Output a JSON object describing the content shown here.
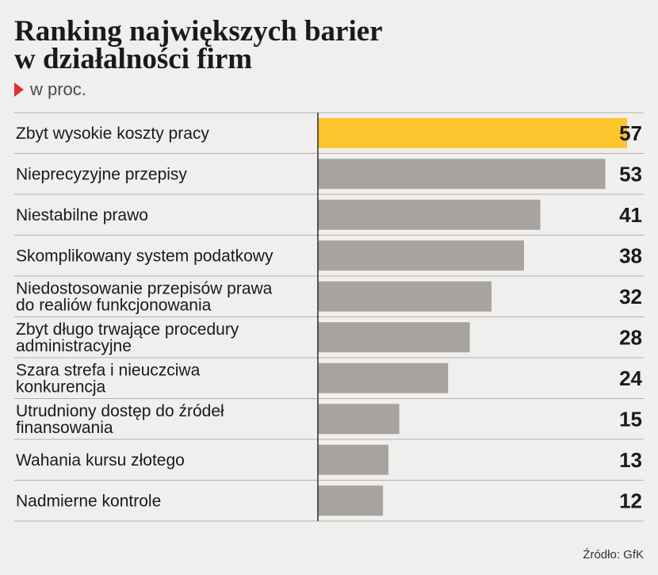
{
  "title_line1": "Ranking największych barier",
  "title_line2": "w działalności firm",
  "subtitle": "w proc.",
  "source": "Źródło: GfK",
  "colors": {
    "highlight": "#fcc42d",
    "bar": "#a6a3a0",
    "divider": "#b2b0ad",
    "axis": "#2a2a2a",
    "label": "#1a1a1a"
  },
  "chart_data": {
    "type": "bar",
    "orientation": "horizontal",
    "categories": [
      [
        "Zbyt wysokie koszty pracy"
      ],
      [
        "Nieprecyzyjne przepisy"
      ],
      [
        "Niestabilne prawo"
      ],
      [
        "Skomplikowany system podatkowy"
      ],
      [
        "Niedostosowanie przepisów prawa",
        "do realiów funkcjonowania"
      ],
      [
        "Zbyt długo trwające procedury",
        "administracyjne"
      ],
      [
        "Szara strefa i nieuczciwa",
        "konkurencja"
      ],
      [
        "Utrudniony dostęp do źródeł",
        "finansowania"
      ],
      [
        "Wahania kursu złotego"
      ],
      [
        "Nadmierne kontrole"
      ]
    ],
    "values": [
      57,
      53,
      41,
      38,
      32,
      28,
      24,
      15,
      13,
      12
    ],
    "value_labels": [
      "57",
      "53",
      "41",
      "38",
      "32",
      "28",
      "24",
      "15",
      "13",
      "12"
    ],
    "highlight_index": 0,
    "xlim": [
      0,
      57
    ],
    "grid": false,
    "legend": "none"
  }
}
